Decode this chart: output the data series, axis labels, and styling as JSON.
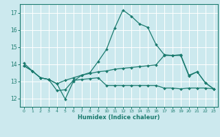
{
  "xlabel": "Humidex (Indice chaleur)",
  "ylim": [
    11.5,
    17.5
  ],
  "yticks": [
    12,
    13,
    14,
    15,
    16,
    17
  ],
  "xlim": [
    -0.5,
    23.5
  ],
  "background_color": "#cce9ee",
  "grid_color": "#ffffff",
  "line_color": "#1a7a6e",
  "x_ticks": [
    0,
    1,
    2,
    3,
    4,
    5,
    6,
    7,
    8,
    9,
    10,
    11,
    12,
    13,
    14,
    15,
    16,
    17,
    18,
    19,
    20,
    21,
    22,
    23
  ],
  "line1_x": [
    0,
    1,
    2,
    3,
    4,
    5,
    6,
    7,
    8,
    9,
    10,
    11,
    12,
    13,
    14,
    15,
    16,
    17,
    18,
    19,
    20,
    21,
    22,
    23
  ],
  "line1_y": [
    14.05,
    13.6,
    13.2,
    13.1,
    12.85,
    11.95,
    13.0,
    13.35,
    13.5,
    14.15,
    14.85,
    16.1,
    17.15,
    16.8,
    16.35,
    16.15,
    15.15,
    14.55,
    14.5,
    14.5,
    13.3,
    13.55,
    12.9,
    12.55
  ],
  "line2_x": [
    0,
    1,
    2,
    3,
    4,
    5,
    6,
    7,
    8,
    9,
    10,
    11,
    12,
    13,
    14,
    15,
    16,
    17,
    18,
    19,
    20,
    21,
    22,
    23
  ],
  "line2_y": [
    13.9,
    13.6,
    13.2,
    13.1,
    12.85,
    13.05,
    13.2,
    13.35,
    13.45,
    13.55,
    13.6,
    13.7,
    13.75,
    13.8,
    13.85,
    13.9,
    13.95,
    14.5,
    14.5,
    14.55,
    13.35,
    13.55,
    12.9,
    12.55
  ],
  "line3_x": [
    0,
    1,
    2,
    3,
    4,
    5,
    6,
    7,
    8,
    9,
    10,
    11,
    12,
    13,
    14,
    15,
    16,
    17,
    18,
    19,
    20,
    21,
    22,
    23
  ],
  "line3_y": [
    13.9,
    13.6,
    13.2,
    13.1,
    12.45,
    12.5,
    13.05,
    13.1,
    13.15,
    13.2,
    12.75,
    12.75,
    12.75,
    12.75,
    12.75,
    12.75,
    12.75,
    12.6,
    12.6,
    12.55,
    12.6,
    12.6,
    12.6,
    12.55
  ]
}
